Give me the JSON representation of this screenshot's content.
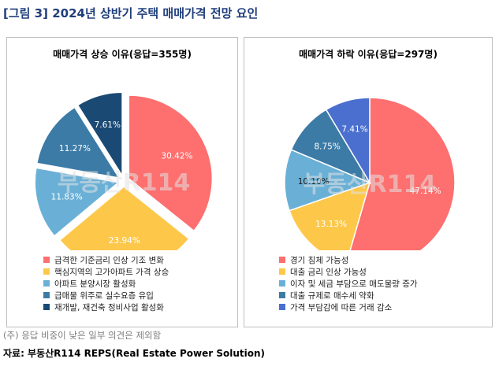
{
  "title": "[그림 3] 2024년 상반기 주택 매매가격 전망 요인",
  "note": "(주) 응답 비중이 낮은 일부 의견은 제외함",
  "source": "자료: 부동산R114 REPS(Real Estate Power Solution)",
  "watermark": "부동산R114",
  "chart_data": [
    {
      "type": "pie",
      "title": "매매가격 상승 이유(응답=355명)",
      "labels": [
        "급격한 기준금리 인상 기조 변화",
        "핵심지역의 고가아파트 가격 상승",
        "아파트 분양시장 활성화",
        "급매물 위주로 실수요층 유입",
        "재개발, 재건축 정비사업 활성화"
      ],
      "values": [
        30.42,
        23.94,
        11.83,
        11.27,
        7.61
      ],
      "value_labels": [
        "30.42%",
        "23.94%",
        "11.83%",
        "11.27%",
        "7.61%"
      ],
      "colors": [
        "#fe6f6f",
        "#fdc84a",
        "#6ab0d6",
        "#3c7ba6",
        "#1a4a74"
      ],
      "label_colors": [
        "#ffffff",
        "#ffffff",
        "#ffffff",
        "#ffffff",
        "#ffffff"
      ],
      "exploded": true
    },
    {
      "type": "pie",
      "title": "매매가격 하락 이유(응답=297명)",
      "labels": [
        "경기 침체 가능성",
        "대출 금리 인상 가능성",
        "이자 및 세금 부담으로 매도물량 증가",
        "대출 규제로 매수세 약화",
        "가격 부담감에 따른 거래 감소"
      ],
      "values": [
        47.14,
        13.13,
        10.1,
        8.75,
        7.41
      ],
      "value_labels": [
        "47.14%",
        "13.13%",
        "10.10%",
        "8.75%",
        "7.41%"
      ],
      "colors": [
        "#fe6f6f",
        "#fdc84a",
        "#6ab0d6",
        "#3c7ba6",
        "#4a6fcf"
      ],
      "label_colors": [
        "#ffffff",
        "#ffffff",
        "#1a1a1a",
        "#ffffff",
        "#ffffff"
      ],
      "exploded": false
    }
  ]
}
